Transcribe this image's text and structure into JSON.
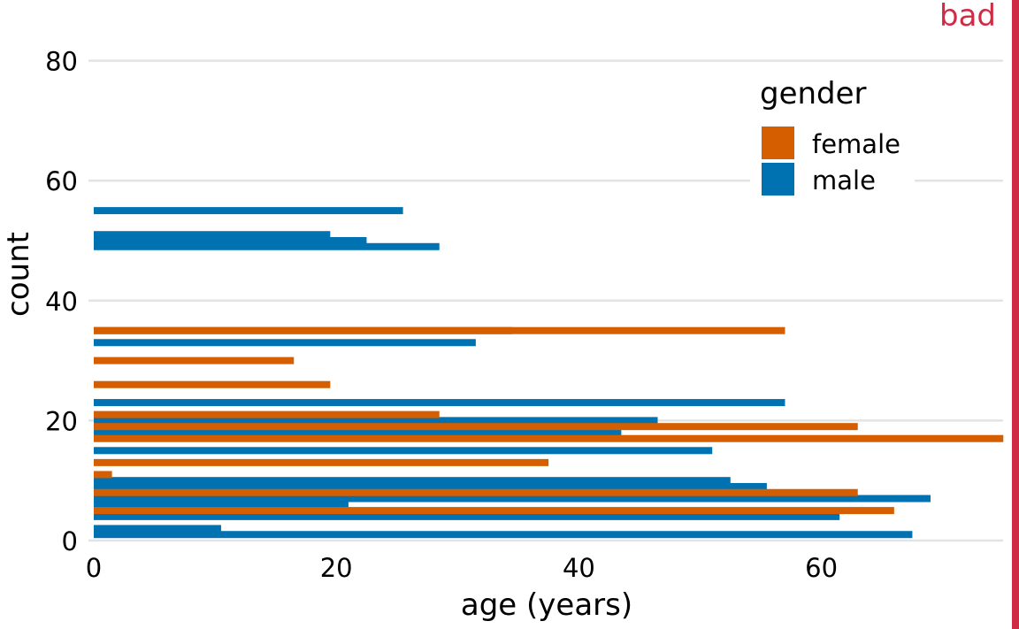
{
  "stamp": {
    "label": "bad",
    "color": "#d02b45"
  },
  "chart_data": {
    "type": "bar",
    "orientation": "horizontal",
    "title": "",
    "xlabel": "age (years)",
    "ylabel": "count",
    "xlim": [
      0,
      75
    ],
    "ylim": [
      0,
      85
    ],
    "xticks": [
      0,
      20,
      40,
      60
    ],
    "yticks": [
      0,
      20,
      40,
      60,
      80
    ],
    "grid": "horizontal",
    "legend": {
      "title": "gender",
      "position": "top-right",
      "items": [
        {
          "name": "female",
          "color": "#d55e00"
        },
        {
          "name": "male",
          "color": "#0072b2"
        }
      ]
    },
    "series": [
      {
        "name": "male",
        "color": "#0072b2",
        "bars": [
          {
            "count": 1,
            "age": 67.5
          },
          {
            "count": 2,
            "age": 10.5
          },
          {
            "count": 4,
            "age": 61.5
          },
          {
            "count": 6,
            "age": 21
          },
          {
            "count": 7,
            "age": 69
          },
          {
            "count": 9,
            "age": 55.5
          },
          {
            "count": 10,
            "age": 52.5
          },
          {
            "count": 15,
            "age": 51
          },
          {
            "count": 18,
            "age": 43.5
          },
          {
            "count": 19,
            "age": 37.5
          },
          {
            "count": 20,
            "age": 46.5
          },
          {
            "count": 23,
            "age": 57
          },
          {
            "count": 33,
            "age": 31.5
          },
          {
            "count": 35,
            "age": 34.5
          },
          {
            "count": 49,
            "age": 28.5
          },
          {
            "count": 50,
            "age": 22.5
          },
          {
            "count": 51,
            "age": 19.5
          },
          {
            "count": 55,
            "age": 25.5
          }
        ]
      },
      {
        "name": "female",
        "color": "#d55e00",
        "bars": [
          {
            "count": 5,
            "age": 66
          },
          {
            "count": 8,
            "age": 63
          },
          {
            "count": 11,
            "age": 1.5
          },
          {
            "count": 13,
            "age": 37.5
          },
          {
            "count": 17,
            "age": 75
          },
          {
            "count": 19,
            "age": 63
          },
          {
            "count": 21,
            "age": 28.5
          },
          {
            "count": 26,
            "age": 19.5
          },
          {
            "count": 30,
            "age": 16.5
          },
          {
            "count": 35,
            "age": 57
          }
        ]
      }
    ]
  }
}
